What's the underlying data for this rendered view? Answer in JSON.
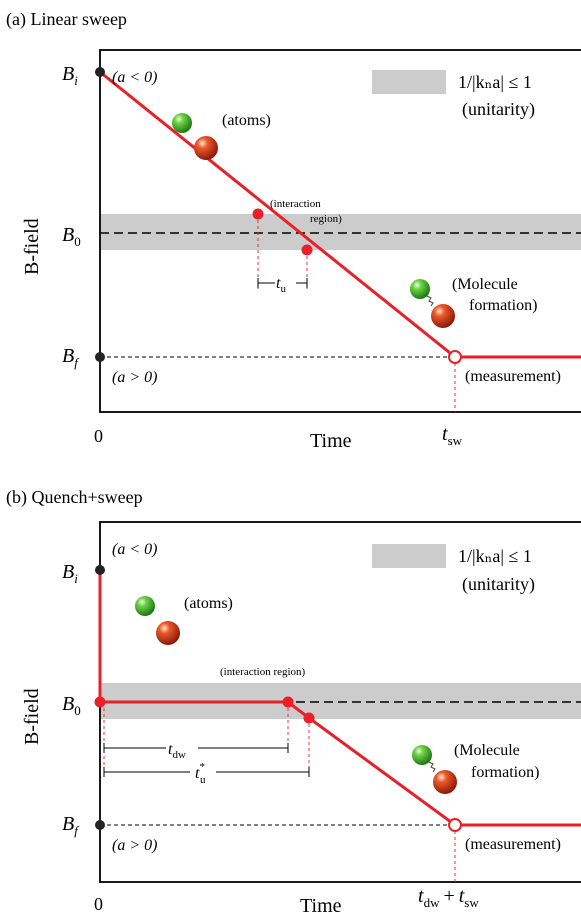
{
  "panel_a": {
    "title": "(a) Linear sweep",
    "y_axis_label": "B-field",
    "x_axis_label": "Time",
    "x_origin": "0",
    "levels": {
      "bi": "B",
      "bi_sub": "i",
      "b0": "B",
      "b0_sub": "0",
      "bf": "B",
      "bf_sub": "f"
    },
    "a_neg": "(a < 0)",
    "a_pos": "(a > 0)",
    "legend": {
      "text": "1/|kₙa| ≤ 1",
      "sub": "(unitarity)"
    },
    "atoms_label": "(atoms)",
    "interaction_label_1": "(interaction",
    "interaction_label_2": "region)",
    "tu_label": "t",
    "tu_sub": "u",
    "molecule_label_1": "(Molecule",
    "molecule_label_2": "formation)",
    "measurement_label": "(measurement)",
    "tsw_label": "t",
    "tsw_sub": "sw"
  },
  "panel_b": {
    "title": "(b) Quench+sweep",
    "y_axis_label": "B-field",
    "x_axis_label": "Time",
    "x_origin": "0",
    "levels": {
      "bi": "B",
      "bi_sub": "i",
      "b0": "B",
      "b0_sub": "0",
      "bf": "B",
      "bf_sub": "f"
    },
    "a_neg": "(a < 0)",
    "a_pos": "(a > 0)",
    "legend": {
      "text": "1/|kₙa| ≤ 1",
      "sub": "(unitarity)"
    },
    "atoms_label": "(atoms)",
    "interaction_label": "(interaction region)",
    "tdw_label": "t",
    "tdw_sub": "dw",
    "tu_label": "t",
    "tu_sub": "u",
    "tu_sup": "*",
    "molecule_label_1": "(Molecule",
    "molecule_label_2": "formation)",
    "measurement_label": "(measurement)",
    "t_end_label_1": "t",
    "t_end_sub_1": "dw",
    "t_end_plus": "+",
    "t_end_label_2": "t",
    "t_end_sub_2": "sw"
  },
  "colors": {
    "red_line": "#e8202a",
    "band": "#cccccc",
    "green_atom": "#3aaa2a",
    "red_atom": "#d23a1a"
  }
}
